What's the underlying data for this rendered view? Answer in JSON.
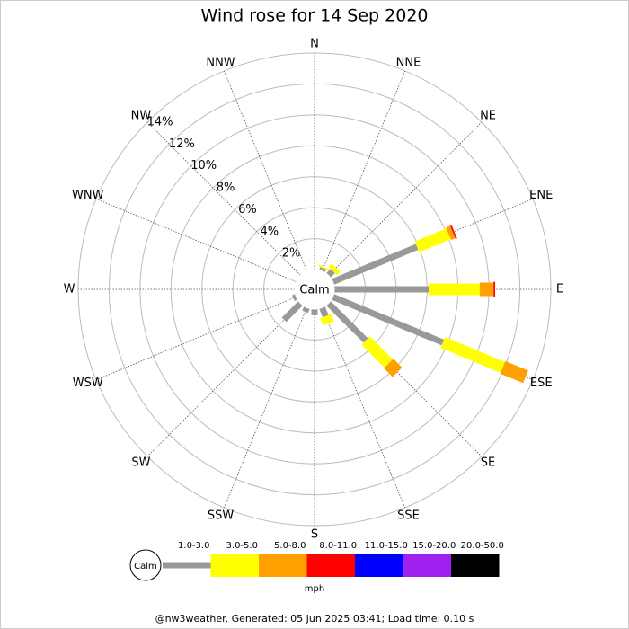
{
  "chart_data": {
    "type": "wind_rose",
    "title": "Wind rose for 14 Sep 2020",
    "directions": [
      "N",
      "NNE",
      "NE",
      "ENE",
      "E",
      "ESE",
      "SE",
      "SSE",
      "S",
      "SSW",
      "SW",
      "WSW",
      "W",
      "WNW",
      "NW",
      "NNW"
    ],
    "calm_label": "Calm",
    "unit": "mph",
    "rlim": [
      0,
      14
    ],
    "rticks": [
      {
        "value": 2,
        "label": "2%"
      },
      {
        "value": 4,
        "label": "4%"
      },
      {
        "value": 6,
        "label": "6%"
      },
      {
        "value": 8,
        "label": "8%"
      },
      {
        "value": 10,
        "label": "10%"
      },
      {
        "value": 12,
        "label": "12%"
      },
      {
        "value": 14,
        "label": "14%"
      }
    ],
    "series": [
      {
        "name": "1.0-3.0",
        "color": "#999999",
        "values": [
          0,
          0.2,
          0.4,
          5.9,
          6.1,
          7.7,
          3.4,
          0.6,
          0.4,
          0.3,
          1.5,
          0.2,
          0,
          0,
          0,
          0
        ]
      },
      {
        "name": "3.0-5.0",
        "color": "#ffff00",
        "values": [
          0,
          0.1,
          0.3,
          2.2,
          3.3,
          4.2,
          2.1,
          0.5,
          0,
          0,
          0,
          0,
          0,
          0,
          0,
          0
        ]
      },
      {
        "name": "5.0-8.0",
        "color": "#ffa000",
        "values": [
          0,
          0,
          0,
          0.3,
          0.9,
          1.6,
          0.8,
          0,
          0,
          0,
          0,
          0,
          0,
          0,
          0,
          0
        ]
      },
      {
        "name": "8.0-11.0",
        "color": "#ff0000",
        "values": [
          0,
          0,
          0,
          0.1,
          0.1,
          0,
          0,
          0,
          0,
          0,
          0,
          0,
          0,
          0,
          0,
          0
        ]
      },
      {
        "name": "11.0-15.0",
        "color": "#0000ff",
        "values": [
          0,
          0,
          0,
          0,
          0,
          0,
          0,
          0,
          0,
          0,
          0,
          0,
          0,
          0,
          0,
          0
        ]
      },
      {
        "name": "15.0-20.0",
        "color": "#a020f0",
        "values": [
          0,
          0,
          0,
          0,
          0,
          0,
          0,
          0,
          0,
          0,
          0,
          0,
          0,
          0,
          0,
          0
        ]
      },
      {
        "name": "20.0-50.0",
        "color": "#000000",
        "values": [
          0,
          0,
          0,
          0,
          0,
          0,
          0,
          0,
          0,
          0,
          0,
          0,
          0,
          0,
          0,
          0
        ]
      }
    ],
    "footer": "@nw3weather. Generated: 05 Jun 2025 03:41; Load time: 0.10 s"
  }
}
